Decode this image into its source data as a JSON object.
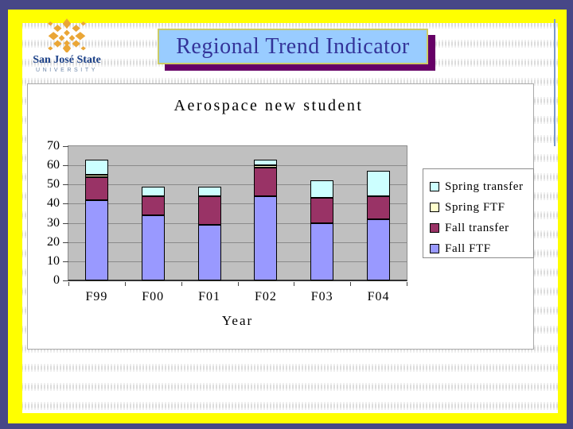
{
  "slide": {
    "title": "Regional Trend Indicator"
  },
  "logo": {
    "name": "San José State",
    "subname": "UNIVERSITY"
  },
  "chart_data": {
    "type": "bar",
    "stacked": true,
    "title": "Aerospace new student",
    "xlabel": "Year",
    "ylabel": "",
    "categories": [
      "F99",
      "F00",
      "F01",
      "F02",
      "F03",
      "F04"
    ],
    "series": [
      {
        "name": "Fall FTF",
        "color": "#9999FF",
        "values": [
          42,
          34,
          29,
          44,
          30,
          32
        ]
      },
      {
        "name": "Fall transfer",
        "color": "#993366",
        "values": [
          12,
          10,
          15,
          15,
          13,
          12
        ]
      },
      {
        "name": "Spring FTF",
        "color": "#FFFFCC",
        "values": [
          1,
          0,
          0,
          1,
          0,
          0
        ]
      },
      {
        "name": "Spring transfer",
        "color": "#CCFFFF",
        "values": [
          8,
          5,
          5,
          3,
          9,
          13
        ]
      }
    ],
    "ylim": [
      0,
      70
    ],
    "yticks": [
      0,
      10,
      20,
      30,
      40,
      50,
      60,
      70
    ],
    "grid": true,
    "plot_bg": "#C0C0C0",
    "legend_position": "right",
    "legend_order": [
      "Spring transfer",
      "Spring FTF",
      "Fall transfer",
      "Fall FTF"
    ]
  },
  "colors": {
    "frame_outer": "#474787",
    "frame_inner": "#FFFF00",
    "title_bg": "#99CCFF",
    "title_text": "#333399",
    "title_border": "#CCCC66",
    "title_shadow": "#660066",
    "plot_background": "#C0C0C0",
    "accent_line": "#7A9ACB",
    "logo_gold": "#EAA636",
    "logo_blue": "#1D4289"
  }
}
